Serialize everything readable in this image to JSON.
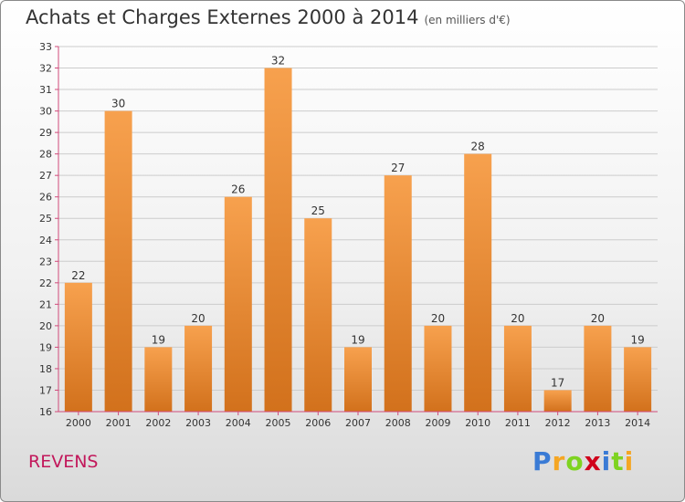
{
  "title": "Achats et Charges Externes 2000 à 2014",
  "subtitle": "(en milliers d'€)",
  "location": "REVENS",
  "logo": {
    "text": "Proxiti",
    "letters": [
      "P",
      "r",
      "o",
      "x",
      "i",
      "t",
      "i"
    ],
    "colors": [
      "#3a7bd5",
      "#f5a623",
      "#7ed321",
      "#d0021b",
      "#3a7bd5",
      "#7ed321",
      "#f5a623"
    ]
  },
  "colors": {
    "bar_top": "#f7a14e",
    "bar_bottom": "#d2711c",
    "axis": "#d14a7a",
    "grid": "#cccccc",
    "title": "#333333",
    "location": "#c2185b"
  },
  "chart_data": {
    "type": "bar",
    "categories": [
      "2000",
      "2001",
      "2002",
      "2003",
      "2004",
      "2005",
      "2006",
      "2007",
      "2008",
      "2009",
      "2010",
      "2011",
      "2012",
      "2013",
      "2014"
    ],
    "values": [
      22,
      30,
      19,
      20,
      26,
      32,
      25,
      19,
      27,
      20,
      28,
      20,
      17,
      20,
      19
    ],
    "ylim": [
      16,
      33
    ],
    "yticks": [
      16,
      17,
      18,
      19,
      20,
      21,
      22,
      23,
      24,
      25,
      26,
      27,
      28,
      29,
      30,
      31,
      32,
      33
    ],
    "grid": true,
    "data_labels": true
  }
}
